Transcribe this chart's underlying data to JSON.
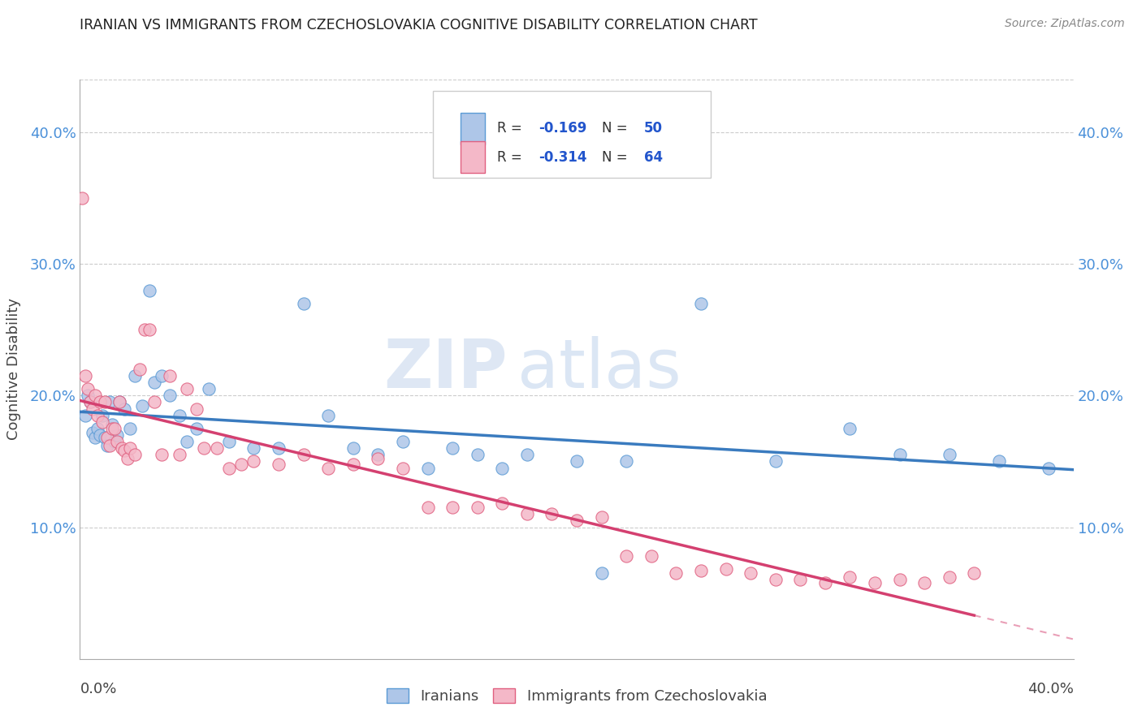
{
  "title": "IRANIAN VS IMMIGRANTS FROM CZECHOSLOVAKIA COGNITIVE DISABILITY CORRELATION CHART",
  "source": "Source: ZipAtlas.com",
  "ylabel": "Cognitive Disability",
  "watermark_zip": "ZIP",
  "watermark_atlas": "atlas",
  "xlim": [
    0.0,
    0.4
  ],
  "ylim": [
    0.0,
    0.44
  ],
  "ytick_vals": [
    0.1,
    0.2,
    0.3,
    0.4
  ],
  "ytick_labels": [
    "10.0%",
    "20.0%",
    "30.0%",
    "40.0%"
  ],
  "iranians_color": "#aec6e8",
  "iranians_edge_color": "#5b9bd5",
  "iranians_line_color": "#3a7bbf",
  "czecho_color": "#f4b8c8",
  "czecho_edge_color": "#e06080",
  "czecho_line_color": "#d44070",
  "legend_label_iranians": "Iranians",
  "legend_label_czecho": "Immigrants from Czechoslovakia",
  "R_iranians": -0.169,
  "N_iranians": 50,
  "R_czecho": -0.314,
  "N_czecho": 64,
  "iranians_x": [
    0.002,
    0.003,
    0.004,
    0.005,
    0.006,
    0.007,
    0.008,
    0.009,
    0.01,
    0.011,
    0.012,
    0.013,
    0.014,
    0.015,
    0.016,
    0.018,
    0.02,
    0.022,
    0.025,
    0.028,
    0.03,
    0.033,
    0.036,
    0.04,
    0.043,
    0.047,
    0.052,
    0.06,
    0.07,
    0.08,
    0.09,
    0.1,
    0.11,
    0.12,
    0.13,
    0.14,
    0.15,
    0.16,
    0.17,
    0.18,
    0.2,
    0.21,
    0.22,
    0.25,
    0.28,
    0.31,
    0.33,
    0.35,
    0.37,
    0.39
  ],
  "iranians_y": [
    0.185,
    0.2,
    0.195,
    0.172,
    0.168,
    0.175,
    0.17,
    0.185,
    0.168,
    0.162,
    0.195,
    0.178,
    0.165,
    0.17,
    0.195,
    0.19,
    0.175,
    0.215,
    0.192,
    0.28,
    0.21,
    0.215,
    0.2,
    0.185,
    0.165,
    0.175,
    0.205,
    0.165,
    0.16,
    0.16,
    0.27,
    0.185,
    0.16,
    0.155,
    0.165,
    0.145,
    0.16,
    0.155,
    0.145,
    0.155,
    0.15,
    0.065,
    0.15,
    0.27,
    0.15,
    0.175,
    0.155,
    0.155,
    0.15,
    0.145
  ],
  "czecho_x": [
    0.001,
    0.002,
    0.003,
    0.004,
    0.005,
    0.006,
    0.007,
    0.008,
    0.009,
    0.01,
    0.011,
    0.012,
    0.013,
    0.014,
    0.015,
    0.016,
    0.017,
    0.018,
    0.019,
    0.02,
    0.022,
    0.024,
    0.026,
    0.028,
    0.03,
    0.033,
    0.036,
    0.04,
    0.043,
    0.047,
    0.05,
    0.055,
    0.06,
    0.065,
    0.07,
    0.08,
    0.09,
    0.1,
    0.11,
    0.12,
    0.13,
    0.14,
    0.15,
    0.16,
    0.17,
    0.18,
    0.19,
    0.2,
    0.21,
    0.22,
    0.23,
    0.24,
    0.25,
    0.26,
    0.27,
    0.28,
    0.29,
    0.3,
    0.31,
    0.32,
    0.33,
    0.34,
    0.35,
    0.36
  ],
  "czecho_y": [
    0.35,
    0.215,
    0.205,
    0.195,
    0.19,
    0.2,
    0.185,
    0.195,
    0.18,
    0.195,
    0.168,
    0.162,
    0.175,
    0.175,
    0.165,
    0.195,
    0.16,
    0.158,
    0.152,
    0.16,
    0.155,
    0.22,
    0.25,
    0.25,
    0.195,
    0.155,
    0.215,
    0.155,
    0.205,
    0.19,
    0.16,
    0.16,
    0.145,
    0.148,
    0.15,
    0.148,
    0.155,
    0.145,
    0.148,
    0.152,
    0.145,
    0.115,
    0.115,
    0.115,
    0.118,
    0.11,
    0.11,
    0.105,
    0.108,
    0.078,
    0.078,
    0.065,
    0.067,
    0.068,
    0.065,
    0.06,
    0.06,
    0.058,
    0.062,
    0.058,
    0.06,
    0.058,
    0.062,
    0.065
  ]
}
